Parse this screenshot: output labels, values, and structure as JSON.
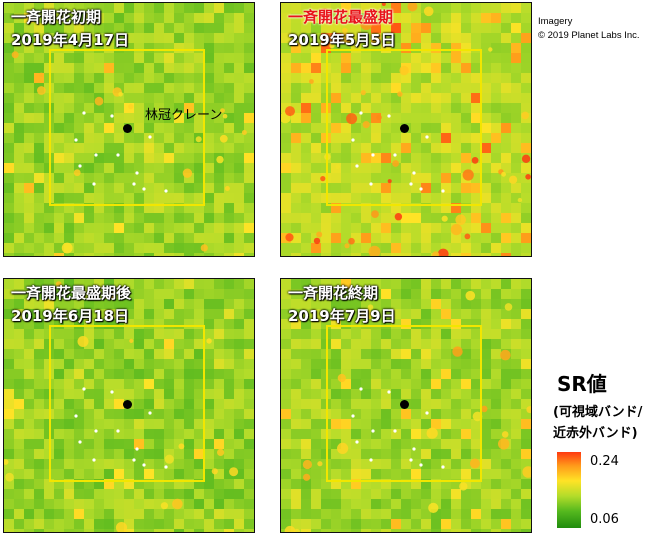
{
  "panels": [
    {
      "title": "一斉開花初期",
      "date": "2019年4月17日",
      "title_color": "#ffffff",
      "bloom_level": 0.15
    },
    {
      "title": "一斉開花最盛期",
      "date": "2019年5月5日",
      "title_color": "#e8141a",
      "bloom_level": 0.85
    },
    {
      "title": "一斉開花最盛期後",
      "date": "2019年6月18日",
      "title_color": "#ffffff",
      "bloom_level": 0.05
    },
    {
      "title": "一斉開花終期",
      "date": "2019年7月9日",
      "title_color": "#ffffff",
      "bloom_level": 0.25
    }
  ],
  "crane_label": "林冠クレーン",
  "credit": {
    "line1": "Imagery",
    "line2": "© 2019 Planet Labs Inc."
  },
  "legend": {
    "title": "SR値",
    "subtitle_line1": "(可視域バンド/",
    "subtitle_line2": "近赤外バンド)",
    "max_label": "0.24",
    "min_label": "0.06",
    "colors": [
      "#208c0e",
      "#55b81e",
      "#b3dc2a",
      "#ffe326",
      "#ff9a1a",
      "#ff3a10"
    ]
  }
}
